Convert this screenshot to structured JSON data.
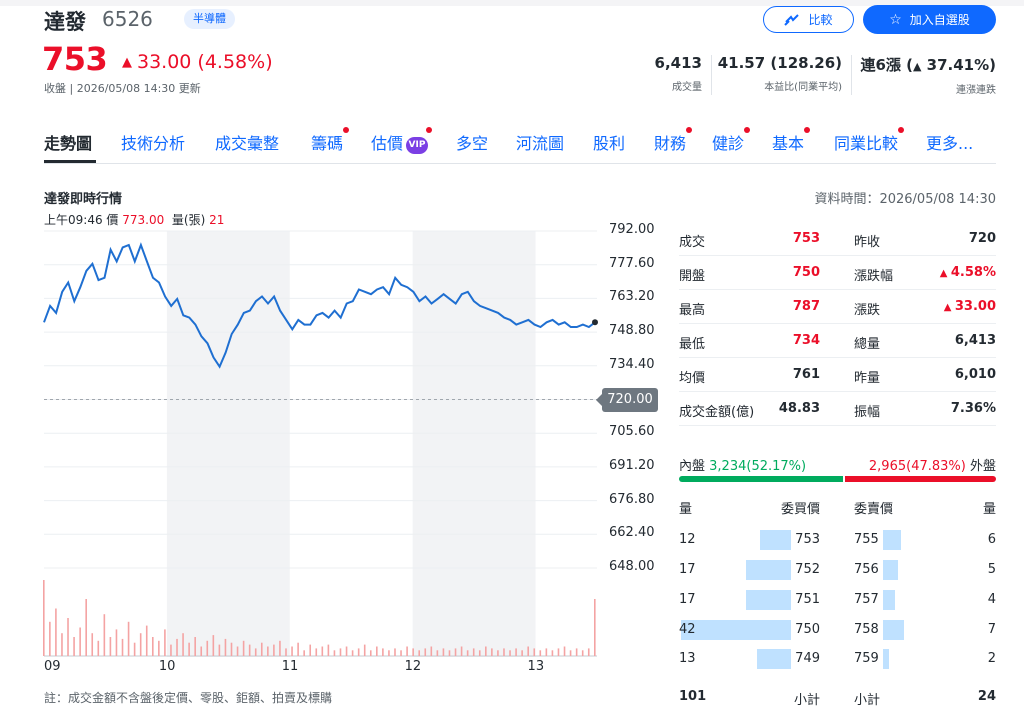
{
  "header": {
    "name": "達發",
    "code": "6526",
    "industry": "半導體",
    "price": "753",
    "change": "33.00 (4.58%)",
    "updated": "收盤 | 2026/05/08 14:30 更新",
    "compare_label": "比較",
    "watch_label": "加入自選股"
  },
  "kpis": [
    {
      "value": "6,413",
      "label": "成交量"
    },
    {
      "value": "41.57 (128.26)",
      "label": "本益比(同業平均)"
    },
    {
      "value_prefix": "連6漲",
      "value": "37.41%",
      "label": "連漲連跌"
    }
  ],
  "tabs": [
    {
      "label": "走勢圖",
      "active": true
    },
    {
      "label": "技術分析"
    },
    {
      "label": "成交彙整"
    },
    {
      "label": "籌碼",
      "dot": true
    },
    {
      "label": "估價",
      "vip": "VIP",
      "dot": true
    },
    {
      "label": "多空"
    },
    {
      "label": "河流圖"
    },
    {
      "label": "股利"
    },
    {
      "label": "財務",
      "dot": true
    },
    {
      "label": "健診",
      "dot": true
    },
    {
      "label": "基本",
      "dot": true
    },
    {
      "label": "同業比較",
      "dot": true
    },
    {
      "label": "更多..."
    }
  ],
  "chart_section": {
    "title": "達發即時行情",
    "data_time": "資料時間：2026/05/08 14:30",
    "hover_time": "上午09:46",
    "hover_price_label": "價",
    "hover_price": "773.00",
    "hover_vol_label": "量(張)",
    "hover_vol": "21",
    "footnote": "註：成交金額不含盤後定價、零股、鉅額、拍賣及標購"
  },
  "chart_data": {
    "type": "line",
    "x_ticks": [
      "09",
      "10",
      "11",
      "12",
      "13"
    ],
    "y_ticks": [
      "792.00",
      "777.60",
      "763.20",
      "748.80",
      "734.40",
      "720.00",
      "705.60",
      "691.20",
      "676.80",
      "662.40",
      "648.00"
    ],
    "ylim": [
      648,
      792
    ],
    "prev_close": 720,
    "prev_close_label": "720.00",
    "series": [
      {
        "values": [
          753,
          760,
          757,
          766,
          770,
          762,
          768,
          775,
          778,
          771,
          772,
          784,
          779,
          785,
          786,
          779,
          786,
          779,
          772,
          770,
          764,
          760,
          763,
          756,
          755,
          752,
          747,
          744,
          738,
          734,
          740,
          748,
          752,
          757,
          758,
          762,
          764,
          761,
          764,
          758,
          754,
          750,
          754,
          752,
          752,
          756,
          757,
          755,
          758,
          755,
          761,
          762,
          767,
          766,
          765,
          767,
          768,
          765,
          772,
          769,
          768,
          766,
          762,
          764,
          761,
          763,
          765,
          763,
          761,
          765,
          766,
          762,
          760,
          759,
          758,
          757,
          755,
          754,
          752,
          753,
          754,
          752,
          751,
          753,
          754,
          752,
          753,
          751,
          751,
          752,
          751,
          753
        ]
      }
    ],
    "volume": [
      {
        "values": [
          40,
          18,
          25,
          12,
          20,
          10,
          15,
          30,
          12,
          8,
          22,
          10,
          14,
          9,
          18,
          7,
          12,
          16,
          10,
          8,
          14,
          6,
          9,
          12,
          7,
          10,
          5,
          8,
          11,
          6,
          9,
          7,
          5,
          8,
          6,
          4,
          7,
          5,
          6,
          8,
          4,
          5,
          7,
          3,
          6,
          4,
          5,
          6,
          3,
          4,
          5,
          3,
          4,
          6,
          3,
          5,
          4,
          3,
          4,
          3,
          5,
          4,
          3,
          4,
          5,
          3,
          4,
          3,
          4,
          5,
          3,
          4,
          3,
          5,
          4,
          3,
          4,
          3,
          4,
          3,
          5,
          4,
          3,
          4,
          3,
          4,
          5,
          3,
          4,
          3,
          4,
          30
        ]
      }
    ]
  },
  "quote": {
    "rows": [
      {
        "l1": "成交",
        "v1": "753",
        "c1": "red",
        "l2": "昨收",
        "v2": "720",
        "c2": ""
      },
      {
        "l1": "開盤",
        "v1": "750",
        "c1": "red",
        "l2": "漲跌幅",
        "v2": "4.58%",
        "c2": "red",
        "tri2": true
      },
      {
        "l1": "最高",
        "v1": "787",
        "c1": "red",
        "l2": "漲跌",
        "v2": "33.00",
        "c2": "red",
        "tri2": true
      },
      {
        "l1": "最低",
        "v1": "734",
        "c1": "red",
        "l2": "總量",
        "v2": "6,413",
        "c2": ""
      },
      {
        "l1": "均價",
        "v1": "761",
        "c1": "",
        "l2": "昨量",
        "v2": "6,010",
        "c2": ""
      },
      {
        "l1": "成交金額(億)",
        "v1": "48.83",
        "c1": "",
        "l2": "振幅",
        "v2": "7.36%",
        "c2": ""
      }
    ],
    "inner_label": "內盤",
    "inner_value": "3,234(52.17%)",
    "outer_value": "2,965(47.83%)",
    "outer_label": "外盤",
    "inner_fraction": 0.5217
  },
  "orderbook": {
    "headers": {
      "bid_qty": "量",
      "bid_price": "委買價",
      "ask_price": "委賣價",
      "ask_qty": "量"
    },
    "rows": [
      {
        "bid_qty": "12",
        "bid_price": "753",
        "ask_price": "755",
        "ask_qty": "6"
      },
      {
        "bid_qty": "17",
        "bid_price": "752",
        "ask_price": "756",
        "ask_qty": "5"
      },
      {
        "bid_qty": "17",
        "bid_price": "751",
        "ask_price": "757",
        "ask_qty": "4"
      },
      {
        "bid_qty": "42",
        "bid_price": "750",
        "ask_price": "758",
        "ask_qty": "7"
      },
      {
        "bid_qty": "13",
        "bid_price": "749",
        "ask_price": "759",
        "ask_qty": "2"
      }
    ],
    "bid_total": "101",
    "bid_total_label": "小計",
    "ask_total_label": "小計",
    "ask_total": "24"
  }
}
